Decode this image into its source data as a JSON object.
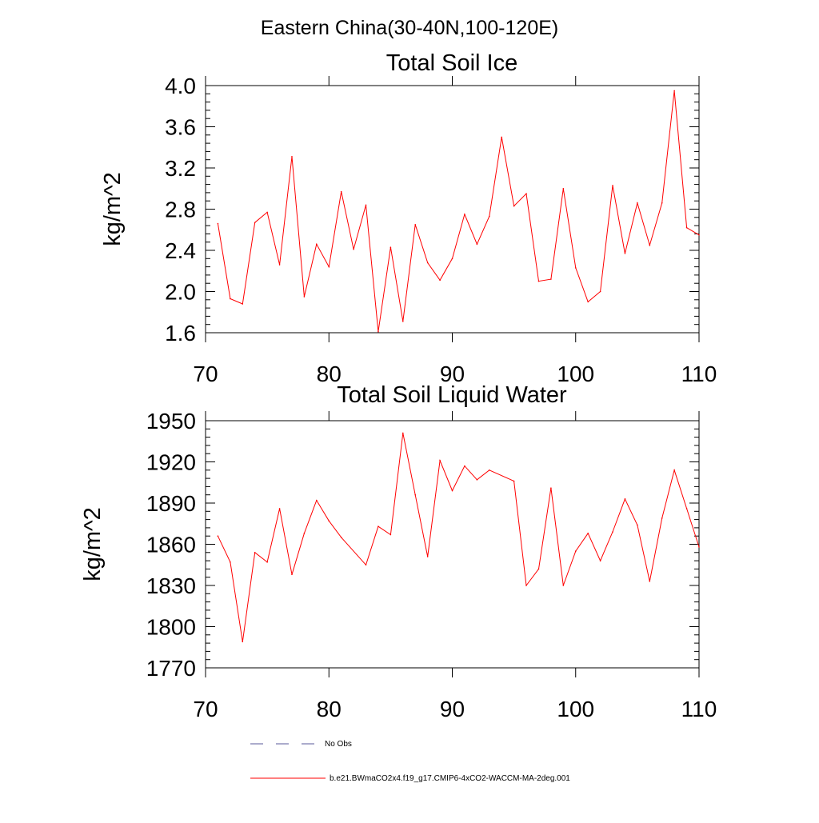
{
  "figure": {
    "title": "Eastern China(30-40N,100-120E)"
  },
  "legend": {
    "entries": [
      {
        "label": "No Obs",
        "style": "dashed",
        "color": "#5a5a99"
      },
      {
        "label": "b.e21.BWmaCO2x4.f19_g17.CMIP6-4xCO2-WACCM-MA-2deg.001",
        "style": "solid",
        "color": "#ff0000"
      }
    ]
  },
  "chart_data": [
    {
      "type": "line",
      "title": "Total Soil Ice",
      "xlabel": "",
      "ylabel": "kg/m^2",
      "xlim": [
        70,
        110
      ],
      "ylim": [
        1.6,
        4.0
      ],
      "xticks": [
        70,
        80,
        90,
        100,
        110
      ],
      "yticks": [
        1.6,
        2.0,
        2.4,
        2.8,
        3.2,
        3.6,
        4.0
      ],
      "ytick_labels": [
        "1.6",
        "2.0",
        "2.4",
        "2.8",
        "3.2",
        "3.6",
        "4.0"
      ],
      "series": [
        {
          "name": "b.e21.BWmaCO2x4.f19_g17.CMIP6-4xCO2-WACCM-MA-2deg.001",
          "color": "#ff0000",
          "x": [
            71,
            72,
            73,
            74,
            75,
            76,
            77,
            78,
            79,
            80,
            81,
            82,
            83,
            84,
            85,
            86,
            87,
            88,
            89,
            90,
            91,
            92,
            93,
            94,
            95,
            96,
            97,
            98,
            99,
            100,
            101,
            102,
            103,
            104,
            105,
            106,
            107,
            108,
            109,
            110
          ],
          "y": [
            2.66,
            1.93,
            1.88,
            2.67,
            2.77,
            2.26,
            3.31,
            1.95,
            2.46,
            2.24,
            2.97,
            2.41,
            2.84,
            1.61,
            2.43,
            1.71,
            2.65,
            2.28,
            2.11,
            2.32,
            2.75,
            2.46,
            2.73,
            3.5,
            2.83,
            2.95,
            2.1,
            2.12,
            3.0,
            2.23,
            1.9,
            2.0,
            3.03,
            2.37,
            2.86,
            2.45,
            2.86,
            3.95,
            2.62,
            2.55
          ]
        }
      ]
    },
    {
      "type": "line",
      "title": "Total Soil Liquid Water",
      "xlabel": "",
      "ylabel": "kg/m^2",
      "xlim": [
        70,
        110
      ],
      "ylim": [
        1770,
        1950
      ],
      "xticks": [
        70,
        80,
        90,
        100,
        110
      ],
      "yticks": [
        1770,
        1800,
        1830,
        1860,
        1890,
        1920,
        1950
      ],
      "ytick_labels": [
        "1770",
        "1800",
        "1830",
        "1860",
        "1890",
        "1920",
        "1950"
      ],
      "series": [
        {
          "name": "b.e21.BWmaCO2x4.f19_g17.CMIP6-4xCO2-WACCM-MA-2deg.001",
          "color": "#ff0000",
          "x": [
            71,
            72,
            73,
            74,
            75,
            76,
            77,
            78,
            79,
            80,
            81,
            83,
            84,
            85,
            86,
            87,
            88,
            89,
            90,
            91,
            92,
            93,
            95,
            96,
            97,
            98,
            99,
            100,
            101,
            102,
            103,
            104,
            105,
            106,
            107,
            108,
            109,
            110
          ],
          "y": [
            1866,
            1847,
            1789,
            1854,
            1847,
            1886,
            1838,
            1868,
            1892,
            1877,
            1865,
            1845,
            1873,
            1867,
            1941,
            1896,
            1851,
            1921,
            1899,
            1917,
            1907,
            1914,
            1906,
            1830,
            1842,
            1901,
            1830,
            1855,
            1868,
            1848,
            1869,
            1893,
            1874,
            1833,
            1879,
            1914,
            1886,
            1858
          ]
        }
      ]
    }
  ]
}
